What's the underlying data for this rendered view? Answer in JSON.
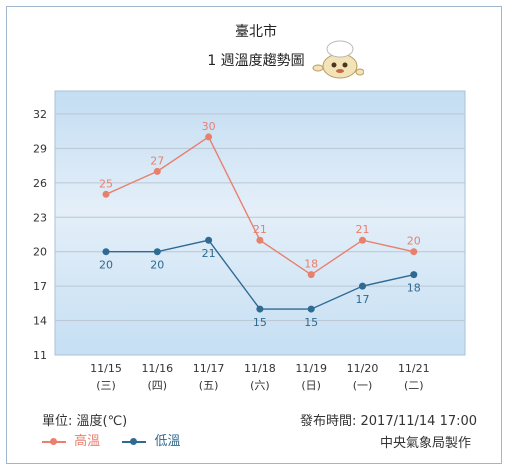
{
  "header": {
    "title": "臺北市",
    "subtitle": "1 週溫度趨勢圖"
  },
  "footer": {
    "unit": "單位: 溫度(℃)",
    "issued": "發布時間: 2017/11/14 17:00",
    "producer": "中央氣象局製作"
  },
  "legend": [
    {
      "label": "高溫",
      "color": "#e8806e"
    },
    {
      "label": "低溫",
      "color": "#2f6a92"
    }
  ],
  "icons": {
    "mascot": "weather-mascot-icon"
  },
  "chart_data": {
    "type": "line",
    "categories": [
      "11/15",
      "11/16",
      "11/17",
      "11/18",
      "11/19",
      "11/20",
      "11/21"
    ],
    "weekdays": [
      "(三)",
      "(四)",
      "(五)",
      "(六)",
      "(日)",
      "(一)",
      "(二)"
    ],
    "series": [
      {
        "name": "高溫",
        "values": [
          25,
          27,
          30,
          21,
          18,
          21,
          20
        ],
        "color": "#e8806e"
      },
      {
        "name": "低溫",
        "values": [
          20,
          20,
          21,
          15,
          15,
          17,
          18
        ],
        "color": "#2f6a92"
      }
    ],
    "yticks": [
      11,
      14,
      17,
      20,
      23,
      26,
      29,
      32
    ],
    "ylim": [
      11,
      34
    ],
    "grid": true
  }
}
